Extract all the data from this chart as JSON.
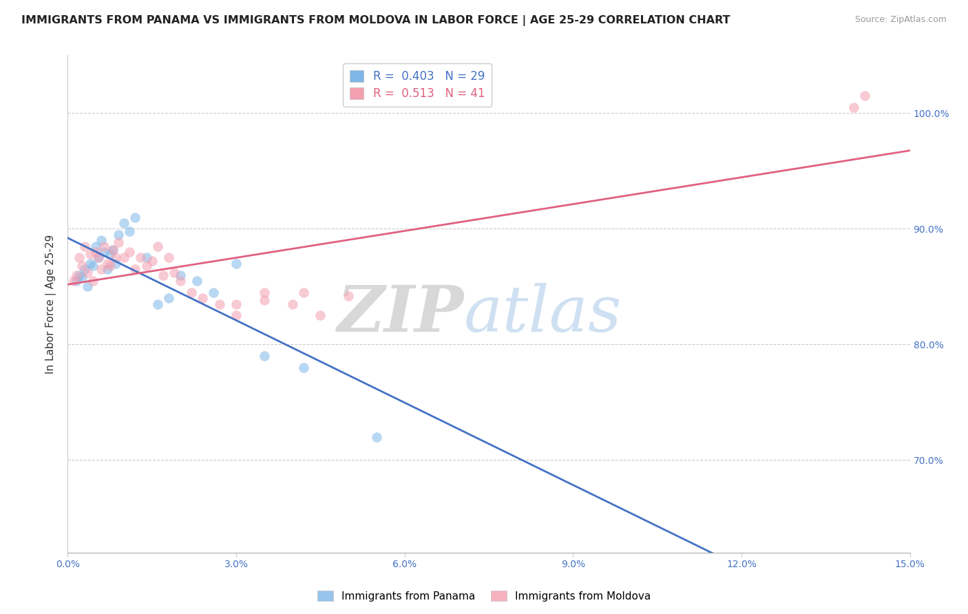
{
  "title": "IMMIGRANTS FROM PANAMA VS IMMIGRANTS FROM MOLDOVA IN LABOR FORCE | AGE 25-29 CORRELATION CHART",
  "source": "Source: ZipAtlas.com",
  "ylabel": "In Labor Force | Age 25-29",
  "xlim": [
    0.0,
    15.0
  ],
  "ylim": [
    62.0,
    105.0
  ],
  "x_tick_vals": [
    0.0,
    3.0,
    6.0,
    9.0,
    12.0,
    15.0
  ],
  "x_tick_labels": [
    "0.0%",
    "3.0%",
    "6.0%",
    "9.0%",
    "12.0%",
    "15.0%"
  ],
  "y_tick_vals": [
    70.0,
    80.0,
    90.0,
    100.0
  ],
  "y_tick_labels": [
    "70.0%",
    "80.0%",
    "90.0%",
    "100.0%"
  ],
  "panama_color": "#7EB6E8",
  "moldova_color": "#F4A0B0",
  "trendline_panama_color": "#4472C4",
  "trendline_moldova_color": "#E06080",
  "panama_R": 0.403,
  "panama_N": 29,
  "moldova_R": 0.513,
  "moldova_N": 41,
  "watermark_zip": "ZIP",
  "watermark_atlas": "atlas",
  "panama_x": [
    0.15,
    0.2,
    0.25,
    0.3,
    0.35,
    0.4,
    0.45,
    0.5,
    0.55,
    0.6,
    0.65,
    0.7,
    0.75,
    0.8,
    0.85,
    0.9,
    1.0,
    1.1,
    1.2,
    1.4,
    1.6,
    1.8,
    2.0,
    2.3,
    2.6,
    3.0,
    3.5,
    4.2,
    5.5
  ],
  "panama_y": [
    85.5,
    86.0,
    85.8,
    86.5,
    85.0,
    87.0,
    86.8,
    88.5,
    87.5,
    89.0,
    88.0,
    86.5,
    87.8,
    88.2,
    87.0,
    89.5,
    90.5,
    89.8,
    91.0,
    87.5,
    83.5,
    84.0,
    86.0,
    85.5,
    84.5,
    87.0,
    79.0,
    78.0,
    72.0
  ],
  "moldova_x": [
    0.1,
    0.15,
    0.2,
    0.25,
    0.3,
    0.35,
    0.4,
    0.45,
    0.5,
    0.55,
    0.6,
    0.65,
    0.7,
    0.75,
    0.8,
    0.85,
    0.9,
    1.0,
    1.1,
    1.2,
    1.3,
    1.4,
    1.5,
    1.6,
    1.7,
    1.8,
    1.9,
    2.0,
    2.2,
    2.4,
    2.7,
    3.0,
    3.0,
    3.5,
    3.5,
    4.0,
    4.2,
    4.5,
    5.0,
    14.0,
    14.2
  ],
  "moldova_y": [
    85.5,
    86.0,
    87.5,
    86.8,
    88.5,
    86.2,
    87.8,
    85.5,
    88.0,
    87.5,
    86.5,
    88.5,
    87.0,
    86.8,
    88.2,
    87.5,
    88.8,
    87.5,
    88.0,
    86.5,
    87.5,
    86.8,
    87.2,
    88.5,
    86.0,
    87.5,
    86.2,
    85.5,
    84.5,
    84.0,
    83.5,
    83.5,
    82.5,
    83.8,
    84.5,
    83.5,
    84.5,
    82.5,
    84.2,
    100.5,
    101.5
  ],
  "background_color": "#FFFFFF",
  "grid_color": "#CCCCCC",
  "title_fontsize": 11.5,
  "axis_label_fontsize": 11,
  "tick_fontsize": 10,
  "dot_size": 110,
  "dot_alpha": 0.55,
  "legend_fontsize": 12
}
